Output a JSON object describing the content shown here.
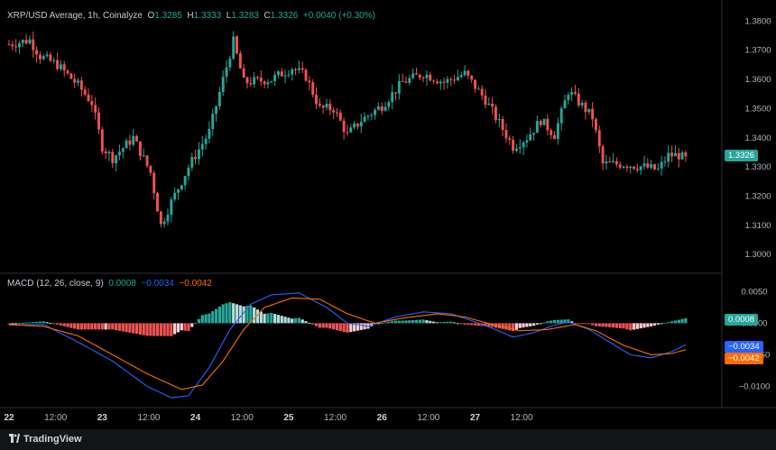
{
  "header": {
    "symbol": "XRP/USD Average, 1h, Coinalyze",
    "o_label": "O",
    "o_value": "1.3285",
    "h_label": "H",
    "h_value": "1.3333",
    "l_label": "L",
    "l_value": "1.3283",
    "c_label": "C",
    "c_value": "1.3326",
    "change": "+0.0040 (+0.30%)"
  },
  "macd_header": {
    "label": "MACD (12, 26, close, 9)",
    "hist_value": "0.0008",
    "macd_value": "−0.0034",
    "signal_value": "−0.0042"
  },
  "footer": {
    "brand": "TradingView"
  },
  "colors": {
    "up": "#26a69a",
    "down": "#ef5350",
    "macd": "#2962ff",
    "signal": "#ff6d00",
    "hist_up_strong": "#26a69a",
    "hist_up_weak": "#b2dfdb",
    "hist_down_strong": "#ef5350",
    "hist_down_weak": "#ffcdd2"
  },
  "chart_data": [
    {
      "type": "candlestick",
      "title": "XRP/USD Average, 1h, Coinalyze",
      "y_ticks": [
        "1.3800",
        "1.3700",
        "1.3600",
        "1.3500",
        "1.3400",
        "1.3300",
        "1.3200",
        "1.3100",
        "1.3000"
      ],
      "ylim": [
        1.2945,
        1.3835
      ],
      "x_ticks": [
        "22",
        "12:00",
        "23",
        "12:00",
        "24",
        "12:00",
        "25",
        "12:00",
        "26",
        "12:00",
        "27",
        "12:00"
      ],
      "last_price_label": "1.3326",
      "x_keypoints": [
        [
          0,
          1.372
        ],
        [
          6,
          1.3735
        ],
        [
          9,
          1.368
        ],
        [
          14,
          1.365
        ],
        [
          20,
          1.358
        ],
        [
          24,
          1.352
        ],
        [
          27,
          1.337
        ],
        [
          30,
          1.333
        ],
        [
          36,
          1.34
        ],
        [
          41,
          1.328
        ],
        [
          44,
          1.31
        ],
        [
          47,
          1.318
        ],
        [
          52,
          1.33
        ],
        [
          58,
          1.342
        ],
        [
          62,
          1.36
        ],
        [
          65,
          1.373
        ],
        [
          68,
          1.359
        ],
        [
          76,
          1.36
        ],
        [
          82,
          1.364
        ],
        [
          86,
          1.361
        ],
        [
          90,
          1.35
        ],
        [
          94,
          1.35
        ],
        [
          98,
          1.341
        ],
        [
          102,
          1.346
        ],
        [
          108,
          1.351
        ],
        [
          114,
          1.359
        ],
        [
          120,
          1.362
        ],
        [
          126,
          1.359
        ],
        [
          132,
          1.362
        ],
        [
          138,
          1.353
        ],
        [
          142,
          1.345
        ],
        [
          146,
          1.337
        ],
        [
          150,
          1.34
        ],
        [
          154,
          1.346
        ],
        [
          158,
          1.341
        ],
        [
          162,
          1.356
        ],
        [
          166,
          1.351
        ],
        [
          169,
          1.347
        ],
        [
          172,
          1.331
        ],
        [
          178,
          1.331
        ],
        [
          184,
          1.33
        ],
        [
          188,
          1.329
        ],
        [
          191,
          1.334
        ],
        [
          194,
          1.334
        ],
        [
          196,
          1.3326
        ]
      ],
      "candles_count": 197
    },
    {
      "type": "macd",
      "title": "MACD (12, 26, close, 9)",
      "y_ticks": [
        "0.0050",
        "0.0000",
        "−0.0050",
        "−0.0100"
      ],
      "ylim": [
        -0.0128,
        0.0072
      ],
      "series": [
        {
          "name": "MACD",
          "keypoints": [
            [
              0,
              -0.0003
            ],
            [
              10,
              -0.0002
            ],
            [
              20,
              -0.003
            ],
            [
              30,
              -0.006
            ],
            [
              40,
              -0.01
            ],
            [
              47,
              -0.0118
            ],
            [
              52,
              -0.0115
            ],
            [
              58,
              -0.007
            ],
            [
              64,
              -0.001
            ],
            [
              70,
              0.003
            ],
            [
              76,
              0.0045
            ],
            [
              84,
              0.0048
            ],
            [
              92,
              0.0025
            ],
            [
              98,
              0.0
            ],
            [
              104,
              -0.0005
            ],
            [
              112,
              0.001
            ],
            [
              120,
              0.0018
            ],
            [
              128,
              0.0015
            ],
            [
              134,
              0.0004
            ],
            [
              140,
              -0.0008
            ],
            [
              146,
              -0.0022
            ],
            [
              152,
              -0.0015
            ],
            [
              158,
              -0.0003
            ],
            [
              162,
              0.0002
            ],
            [
              168,
              -0.001
            ],
            [
              174,
              -0.003
            ],
            [
              180,
              -0.005
            ],
            [
              186,
              -0.0055
            ],
            [
              192,
              -0.0045
            ],
            [
              196,
              -0.0034
            ]
          ]
        },
        {
          "name": "Signal",
          "keypoints": [
            [
              0,
              -0.0002
            ],
            [
              10,
              -0.0005
            ],
            [
              20,
              -0.002
            ],
            [
              30,
              -0.005
            ],
            [
              40,
              -0.008
            ],
            [
              50,
              -0.0105
            ],
            [
              56,
              -0.0098
            ],
            [
              62,
              -0.006
            ],
            [
              68,
              -0.001
            ],
            [
              74,
              0.0025
            ],
            [
              82,
              0.004
            ],
            [
              90,
              0.0038
            ],
            [
              98,
              0.0015
            ],
            [
              106,
              0.0
            ],
            [
              114,
              0.0008
            ],
            [
              124,
              0.0015
            ],
            [
              132,
              0.001
            ],
            [
              140,
              -0.0002
            ],
            [
              148,
              -0.0012
            ],
            [
              156,
              -0.001
            ],
            [
              164,
              -0.0002
            ],
            [
              170,
              -0.0012
            ],
            [
              178,
              -0.0035
            ],
            [
              186,
              -0.005
            ],
            [
              192,
              -0.0048
            ],
            [
              196,
              -0.0042
            ]
          ]
        }
      ],
      "tags": {
        "hist": "0.0008",
        "macd": "−0.0034",
        "signal": "−0.0042"
      }
    }
  ]
}
